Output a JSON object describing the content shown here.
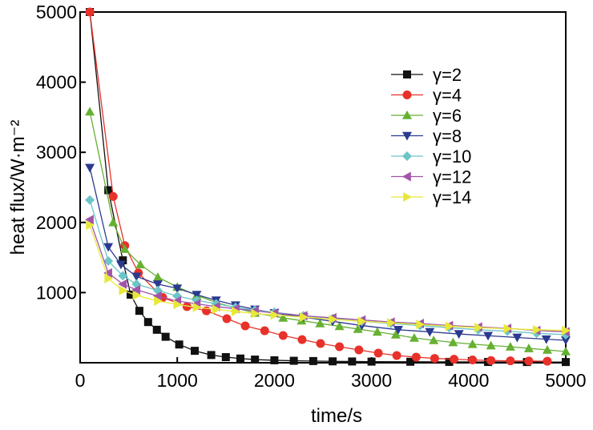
{
  "chart_data": {
    "type": "line",
    "title": "",
    "xlabel": "time/s",
    "ylabel": "heat flux/W·m⁻²",
    "xlim": [
      0,
      5000
    ],
    "ylim": [
      0,
      5000
    ],
    "xticks": [
      "0",
      "1000",
      "2000",
      "3000",
      "4000",
      "5000"
    ],
    "yticks": [
      "1000",
      "2000",
      "3000",
      "4000",
      "5000"
    ],
    "xtick_values": [
      0,
      1000,
      2000,
      3000,
      4000,
      5000
    ],
    "ytick_values": [
      1000,
      2000,
      3000,
      4000,
      5000
    ],
    "grid": false,
    "legend_position": "top-right",
    "series": [
      {
        "name": "γ=2",
        "color": "#111111",
        "marker": "square",
        "x": [
          100,
          290,
          440,
          520,
          610,
          700,
          790,
          880,
          1020,
          1180,
          1350,
          1500,
          1650,
          1800,
          2000,
          2200,
          2400,
          2600,
          2800,
          3000,
          3400,
          3800,
          4200,
          4600,
          5000
        ],
        "y": [
          5000,
          2460,
          1460,
          970,
          740,
          580,
          470,
          370,
          260,
          170,
          110,
          80,
          60,
          45,
          35,
          28,
          24,
          20,
          18,
          16,
          14,
          12,
          11,
          10,
          10
        ]
      },
      {
        "name": "γ=4",
        "color": "#e8312a",
        "marker": "circle",
        "x": [
          100,
          340,
          460,
          600,
          850,
          1100,
          1300,
          1510,
          1700,
          1900,
          2090,
          2285,
          2475,
          2670,
          2870,
          3070,
          3260,
          3460,
          3650,
          3850,
          4040,
          4230,
          4430,
          4620,
          4810
        ],
        "y": [
          5000,
          2370,
          1670,
          1280,
          930,
          800,
          740,
          628,
          525,
          456,
          388,
          330,
          274,
          228,
          183,
          137,
          103,
          80,
          62,
          50,
          40,
          32,
          27,
          24,
          22
        ]
      },
      {
        "name": "γ=6",
        "color": "#66b032",
        "marker": "triangle-up",
        "x": [
          100,
          340,
          460,
          620,
          800,
          1000,
          1200,
          1400,
          1600,
          1800,
          2090,
          2280,
          2470,
          2670,
          2860,
          3060,
          3250,
          3440,
          3640,
          3840,
          4040,
          4230,
          4430,
          4620,
          4810,
          5000
        ],
        "y": [
          3580,
          2000,
          1620,
          1400,
          1220,
          1080,
          960,
          860,
          780,
          710,
          640,
          600,
          560,
          520,
          480,
          440,
          400,
          354,
          320,
          290,
          265,
          245,
          228,
          205,
          183,
          160
        ]
      },
      {
        "name": "γ=8",
        "color": "#2b3a8f",
        "marker": "triangle-down",
        "x": [
          100,
          290,
          420,
          580,
          800,
          1000,
          1200,
          1400,
          1600,
          1800,
          2000,
          2300,
          2600,
          2900,
          3275,
          3600,
          3900,
          4200,
          4500,
          4800,
          5000
        ],
        "y": [
          2780,
          1650,
          1400,
          1230,
          1120,
          1060,
          970,
          890,
          820,
          760,
          710,
          650,
          590,
          530,
          470,
          440,
          410,
          385,
          360,
          335,
          320
        ]
      },
      {
        "name": "γ=10",
        "color": "#6cc5c8",
        "marker": "diamond",
        "x": [
          100,
          290,
          440,
          580,
          800,
          1000,
          1200,
          1400,
          1600,
          1800,
          2000,
          2300,
          2600,
          2900,
          3200,
          3500,
          3800,
          4100,
          4400,
          4700,
          5000
        ],
        "y": [
          2320,
          1450,
          1240,
          1120,
          1030,
          950,
          890,
          840,
          790,
          750,
          720,
          670,
          630,
          590,
          560,
          530,
          500,
          470,
          450,
          420,
          400
        ]
      },
      {
        "name": "γ=12",
        "color": "#a254a8",
        "marker": "triangle-left",
        "x": [
          100,
          290,
          440,
          580,
          800,
          1000,
          1200,
          1400,
          1600,
          1800,
          2000,
          2300,
          2600,
          2900,
          3200,
          3500,
          3800,
          4100,
          4400,
          4700,
          5000
        ],
        "y": [
          2040,
          1280,
          1120,
          1040,
          950,
          880,
          840,
          800,
          770,
          740,
          710,
          670,
          640,
          610,
          580,
          560,
          530,
          510,
          490,
          460,
          440
        ]
      },
      {
        "name": "γ=14",
        "color": "#e8e83a",
        "marker": "triangle-right",
        "x": [
          100,
          290,
          440,
          580,
          800,
          1000,
          1200,
          1400,
          1600,
          1800,
          2000,
          2300,
          2600,
          2900,
          3200,
          3500,
          3800,
          4100,
          4400,
          4700,
          5000
        ],
        "y": [
          1960,
          1200,
          1030,
          960,
          880,
          830,
          790,
          760,
          730,
          700,
          680,
          650,
          620,
          590,
          570,
          545,
          520,
          500,
          485,
          470,
          460
        ]
      }
    ]
  }
}
